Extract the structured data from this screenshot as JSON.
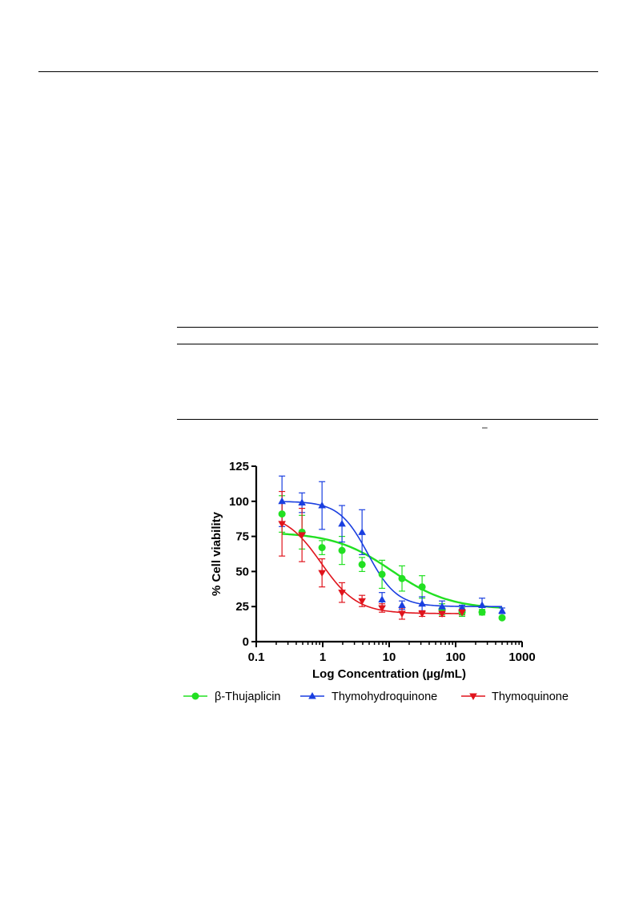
{
  "chart_data": {
    "type": "scatter",
    "xlabel": "Log Concentration (µg/mL)",
    "ylabel": "% Cell viability",
    "x_scale": "log",
    "xlim": [
      0.1,
      1000
    ],
    "ylim": [
      0,
      125
    ],
    "x_ticks": [
      0.1,
      1,
      10,
      100,
      1000
    ],
    "x_tick_labels": [
      "0.1",
      "1",
      "10",
      "100",
      "1000"
    ],
    "y_ticks": [
      0,
      25,
      50,
      75,
      100,
      125
    ],
    "y_tick_labels": [
      "0",
      "25",
      "50",
      "75",
      "100",
      "125"
    ],
    "grid": false,
    "legend_position": "bottom",
    "series": [
      {
        "name": "β-Thujaplicin",
        "color": "#22e022",
        "marker": "circle",
        "x": [
          0.244,
          0.488,
          0.977,
          1.95,
          3.91,
          7.81,
          15.6,
          31.3,
          62.5,
          125,
          250,
          500
        ],
        "y": [
          91,
          78,
          67,
          65,
          55,
          48,
          45,
          39,
          23,
          21,
          21,
          17
        ],
        "err": [
          13,
          12,
          5,
          10,
          5,
          10,
          9,
          8,
          4,
          3,
          2,
          1
        ],
        "fit": {
          "top": 78,
          "bottom": 23,
          "ic50": 11,
          "hill": 1.0
        }
      },
      {
        "name": "Thymohydroquinone",
        "color": "#1a3fe0",
        "marker": "triangle-up",
        "x": [
          0.244,
          0.488,
          0.977,
          1.95,
          3.91,
          7.81,
          15.6,
          31.3,
          62.5,
          125,
          250,
          500
        ],
        "y": [
          100,
          99,
          97,
          84,
          78,
          30,
          26,
          27,
          25,
          24,
          26,
          22
        ],
        "err": [
          18,
          7,
          17,
          13,
          16,
          5,
          3,
          5,
          4,
          2,
          5,
          2
        ],
        "fit": {
          "top": 100,
          "bottom": 25,
          "ic50": 4.8,
          "hill": 2.0
        }
      },
      {
        "name": "Thymoquinone",
        "color": "#e0141c",
        "marker": "triangle-down",
        "x": [
          0.244,
          0.488,
          0.977,
          1.95,
          3.91,
          7.81,
          15.6,
          31.3,
          62.5,
          125
        ],
        "y": [
          84,
          76,
          49,
          35,
          29,
          24,
          20,
          20,
          20,
          21
        ],
        "err": [
          23,
          19,
          10,
          7,
          4,
          3,
          4,
          2,
          2,
          2
        ],
        "fit": {
          "top": 92,
          "bottom": 20,
          "ic50": 0.95,
          "hill": 1.6
        }
      }
    ]
  },
  "page": {
    "small_mark": "–"
  }
}
